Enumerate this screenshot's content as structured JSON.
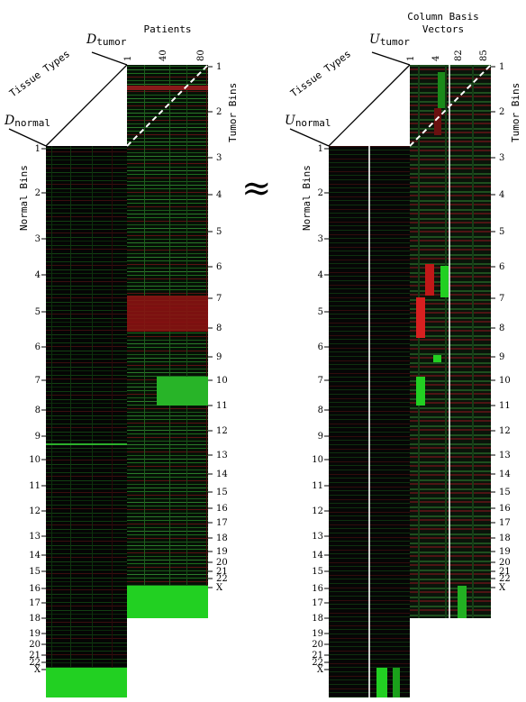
{
  "labels": {
    "patients": "Patients",
    "tissue_types_left": "Tissue Types",
    "tissue_types_right": "Tissue Types",
    "normal_bins_left": "Normal Bins",
    "normal_bins_right": "Normal Bins",
    "tumor_bins_left": "Tumor Bins",
    "tumor_bins_right": "Tumor Bins",
    "column_basis_line1": "Column Basis",
    "column_basis_line2": "Vectors",
    "approx": "≈"
  },
  "symbols": {
    "d_tumor_main": "D",
    "d_tumor_sub": "tumor",
    "d_normal_main": "D",
    "d_normal_sub": "normal",
    "u_tumor_main": "U",
    "u_tumor_sub": "tumor",
    "u_normal_main": "U",
    "u_normal_sub": "normal"
  },
  "patient_ticks": [
    "1",
    "40",
    "80"
  ],
  "vector_ticks": [
    "1",
    "4",
    "82",
    "85"
  ],
  "normal_bin_labels": [
    "1",
    "2",
    "3",
    "4",
    "5",
    "6",
    "7",
    "8",
    "9",
    "10",
    "11",
    "12",
    "13",
    "14",
    "15",
    "16",
    "17",
    "18",
    "19",
    "20",
    "21",
    "22",
    "X"
  ],
  "tumor_bin_labels": [
    "1",
    "2",
    "3",
    "4",
    "5",
    "6",
    "7",
    "8",
    "9",
    "10",
    "11",
    "12",
    "13",
    "14",
    "15",
    "16",
    "17",
    "18",
    "19",
    "20",
    "21",
    "22",
    "X"
  ],
  "colors": {
    "red": "#e02020",
    "green": "#20e020",
    "black": "#000000"
  }
}
